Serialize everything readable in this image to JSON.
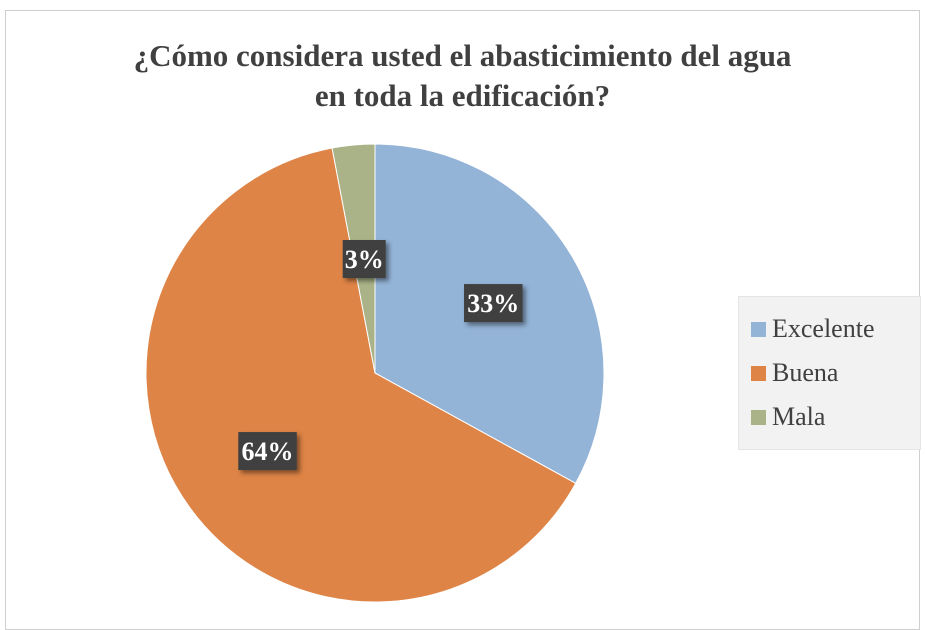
{
  "chart_data": {
    "type": "pie",
    "title": "¿Cómo considera usted el abasticimiento del agua en toda la edificación?",
    "title_lines": [
      "¿Cómo considera usted el abasticimiento del agua",
      "en toda la edificación?"
    ],
    "categories": [
      "Excelente",
      "Buena",
      "Mala"
    ],
    "values": [
      33,
      64,
      3
    ],
    "labels": [
      "33%",
      "64%",
      "3%"
    ],
    "colors": [
      "#93b3d7",
      "#de8446",
      "#a9b387"
    ],
    "legend_placement": "right",
    "start_angle_deg": 0,
    "direction": "clockwise"
  }
}
